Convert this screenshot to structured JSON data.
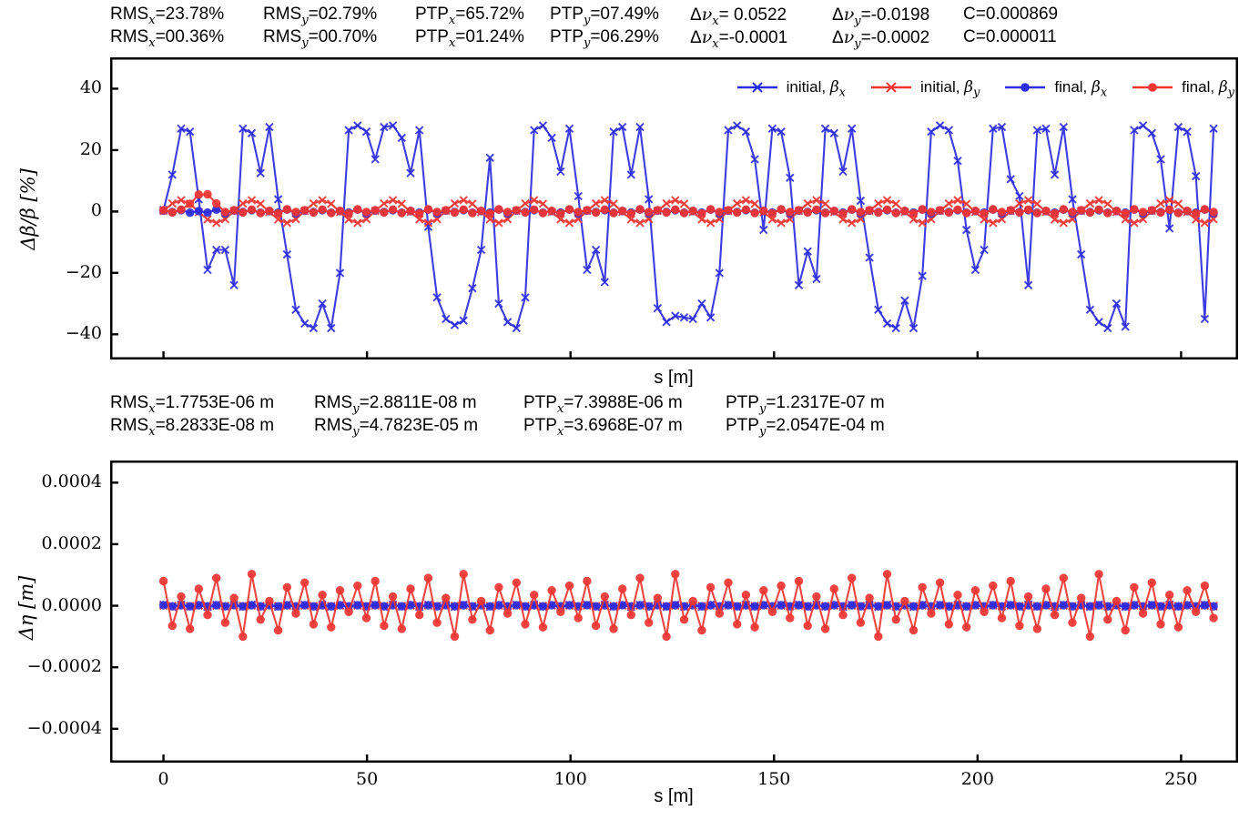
{
  "colors": {
    "blue": "#2b2be0",
    "red": "#ee3532",
    "axis": "#000000",
    "background": "#ffffff"
  },
  "top_stats": {
    "rows": [
      [
        {
          "pre": "RMS",
          "it": "",
          "sub": "x",
          "val": "=23.78%"
        },
        {
          "pre": "RMS",
          "it": "",
          "sub": "y",
          "val": "=02.79%"
        },
        {
          "pre": "PTP",
          "it": "",
          "sub": "x",
          "val": "=65.72%"
        },
        {
          "pre": "PTP",
          "it": "",
          "sub": "y",
          "val": "=07.49%"
        },
        {
          "pre": "Δ",
          "it": "ν",
          "sub": "x",
          "val": "= 0.0522"
        },
        {
          "pre": "Δ",
          "it": "ν",
          "sub": "y",
          "val": "=-0.0198"
        },
        {
          "pre": "C",
          "it": "",
          "sub": "",
          "val": "=0.000869"
        }
      ],
      [
        {
          "pre": "RMS",
          "it": "",
          "sub": "x",
          "val": "=00.36%"
        },
        {
          "pre": "RMS",
          "it": "",
          "sub": "y",
          "val": "=00.70%"
        },
        {
          "pre": "PTP",
          "it": "",
          "sub": "x",
          "val": "=01.24%"
        },
        {
          "pre": "PTP",
          "it": "",
          "sub": "y",
          "val": "=06.29%"
        },
        {
          "pre": "Δ",
          "it": "ν",
          "sub": "x",
          "val": "=-0.0001"
        },
        {
          "pre": "Δ",
          "it": "ν",
          "sub": "y",
          "val": "=-0.0002"
        },
        {
          "pre": "C",
          "it": "",
          "sub": "",
          "val": "=0.000011"
        }
      ]
    ]
  },
  "mid_stats": {
    "rows": [
      [
        {
          "pre": "RMS",
          "it": "",
          "sub": "x",
          "val": "=1.7753E-06 m"
        },
        {
          "pre": "RMS",
          "it": "",
          "sub": "y",
          "val": "=2.8811E-08 m"
        },
        {
          "pre": "PTP",
          "it": "",
          "sub": "x",
          "val": "=7.3988E-06 m"
        },
        {
          "pre": "PTP",
          "it": "",
          "sub": "y",
          "val": "=1.2317E-07 m"
        }
      ],
      [
        {
          "pre": "RMS",
          "it": "",
          "sub": "x",
          "val": "=8.2833E-08 m"
        },
        {
          "pre": "RMS",
          "it": "",
          "sub": "y",
          "val": "=4.7823E-05 m"
        },
        {
          "pre": "PTP",
          "it": "",
          "sub": "x",
          "val": "=3.6968E-07 m"
        },
        {
          "pre": "PTP",
          "it": "",
          "sub": "y",
          "val": "=2.0547E-04 m"
        }
      ]
    ]
  },
  "legend": {
    "entries": [
      {
        "pre": "initial, ",
        "it": "β",
        "sub": "x",
        "color": "#2b2be0",
        "marker": "x"
      },
      {
        "pre": "initial, ",
        "it": "β",
        "sub": "y",
        "color": "#ee3532",
        "marker": "x"
      },
      {
        "pre": "final, ",
        "it": "β",
        "sub": "x",
        "color": "#2b2be0",
        "marker": "o"
      },
      {
        "pre": "final, ",
        "it": "β",
        "sub": "y",
        "color": "#ee3532",
        "marker": "o"
      }
    ]
  },
  "chart_data": [
    {
      "type": "line",
      "title": "",
      "xlabel": "s [m]",
      "ylabel": "Δβ/β [%]",
      "xlim": [
        -13.1,
        264
      ],
      "ylim": [
        -48.2,
        50.2
      ],
      "grid": false,
      "legend_position": "upper right",
      "xticks": {
        "major": [
          0,
          50,
          100,
          150,
          200,
          250
        ],
        "labels": [],
        "labels_visible": false
      },
      "yticks": {
        "major": [
          40,
          20,
          0,
          -20,
          -40
        ],
        "labels": [
          "40",
          "20",
          "0",
          "−20",
          "−40"
        ]
      },
      "s_start": 0,
      "s_step": 2.168,
      "series": [
        {
          "name": "initial, beta_x",
          "color": "#2b2be0",
          "marker": "x",
          "values": [
            0.5,
            12,
            27,
            26,
            4,
            -19,
            -12.5,
            -12.5,
            -24,
            27,
            25.5,
            12.5,
            27.5,
            4,
            -14,
            -32,
            -36.5,
            -38,
            -30,
            -38,
            -20,
            26.5,
            28,
            26,
            17,
            27.5,
            28,
            24,
            12.5,
            26.5,
            -5,
            -28,
            -35,
            -37,
            -35.5,
            -25,
            -12.5,
            17.5,
            -30,
            -36,
            -38,
            -28,
            26.5,
            28,
            24,
            13,
            27,
            5,
            -19,
            -12.5,
            -23,
            26,
            27.5,
            12,
            27.5,
            4,
            -31.5,
            -36,
            -34,
            -34.5,
            -35,
            -30,
            -34.5,
            -20,
            26.5,
            28,
            26,
            17,
            -6,
            27,
            26,
            11,
            -24,
            -13,
            -22,
            27,
            25.5,
            13,
            27,
            3.5,
            -15,
            -32,
            -36.5,
            -38,
            -29,
            -38,
            -21,
            26,
            28,
            26.5,
            16.5,
            -6,
            -19,
            -12.5,
            27,
            27.5,
            10.5,
            5,
            -24,
            26.5,
            27,
            12,
            27.5,
            4,
            -14,
            -32,
            -36,
            -38,
            -30,
            -37.5,
            26.5,
            28,
            25.5,
            17,
            -5.5,
            27.5,
            26,
            11.5,
            -35,
            27
          ]
        },
        {
          "name": "initial, beta_y",
          "color": "#ee3532",
          "marker": "x",
          "cycle": [
            0.2,
            2.6,
            3.7,
            2.5,
            -0.2,
            -2.6,
            -3.7,
            -2.5
          ],
          "repeat": 15
        },
        {
          "name": "final, beta_x",
          "color": "#2b2be0",
          "marker": "o",
          "cycle": [
            0.3,
            -0.2,
            0.45,
            -0.4,
            0.15,
            -0.35,
            0.6,
            -0.6
          ],
          "repeat": 15
        },
        {
          "name": "final, beta_y",
          "color": "#ee3532",
          "marker": "o",
          "cycle": [
            0.4,
            -0.3,
            0.6,
            -0.5,
            0.2,
            -0.6,
            0.7,
            -0.2
          ],
          "repeat": 15,
          "overrides": {
            "3": 2.5,
            "4": 5.5,
            "5": 5.6,
            "6": 2.6
          }
        }
      ]
    },
    {
      "type": "line",
      "title": "",
      "xlabel": "s [m]",
      "ylabel": "Δη [m]",
      "xlim": [
        -13.1,
        264
      ],
      "ylim": [
        -0.00051,
        0.000472
      ],
      "grid": false,
      "xticks": {
        "major": [
          0,
          50,
          100,
          150,
          200,
          250
        ],
        "labels": [
          "0",
          "50",
          "100",
          "150",
          "200",
          "250"
        ],
        "labels_visible": true
      },
      "yticks": {
        "major": [
          0.0004,
          0.0002,
          0,
          -0.0002,
          -0.0004
        ],
        "labels": [
          "0.0004",
          "0.0002",
          "0.0000",
          "−0.0002",
          "−0.0004"
        ]
      },
      "s_start": 0,
      "s_step": 2.168,
      "series": [
        {
          "name": "initial, eta_x",
          "color": "#2b2be0",
          "marker": "x",
          "scale": 0.0001,
          "cycle": [
            0.035,
            -0.035,
            0.037,
            -0.03,
            0.02,
            -0.037,
            0.03,
            -0.02
          ],
          "repeat": 15
        },
        {
          "name": "initial, eta_y",
          "color": "#ee3532",
          "marker": "x",
          "scale": 0.0001,
          "cycle": [
            0.006,
            -0.006
          ],
          "repeat": 60
        },
        {
          "name": "final, eta_x",
          "color": "#2b2be0",
          "marker": "o",
          "scale": 0.0001,
          "cycle": [
            0.02,
            -0.017,
            0.018,
            -0.019
          ],
          "repeat": 30
        },
        {
          "name": "final, eta_y",
          "color": "#ee3532",
          "marker": "o",
          "scale": 0.0001,
          "cycle": [
            0.8,
            -0.65,
            0.3,
            -0.75,
            0.55,
            -0.3,
            0.9,
            -0.55,
            0.25,
            -1.0,
            1.03,
            -0.45,
            0.15,
            -0.8,
            0.6,
            -0.25,
            0.75,
            -0.6,
            0.35,
            -0.7,
            0.5,
            -0.2,
            0.65,
            -0.4
          ],
          "repeat": 5
        }
      ]
    }
  ]
}
